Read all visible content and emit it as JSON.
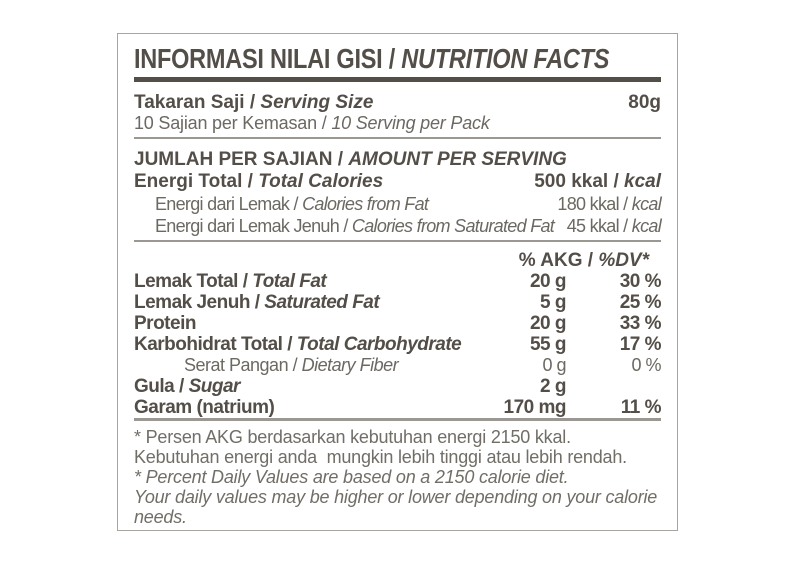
{
  "title": {
    "id": "INFORMASI NILAI GISI / ",
    "en": "NUTRITION FACTS"
  },
  "serving": {
    "size_label_id": "Takaran Saji / ",
    "size_label_en": "Serving Size",
    "size_value": "80g",
    "per_pack_id": "10 Sajian per Kemasan / ",
    "per_pack_en": "10 Serving per Pack"
  },
  "amount_per_serving": {
    "heading_id": "JUMLAH PER SAJIAN / ",
    "heading_en": "AMOUNT PER SERVING",
    "rows": [
      {
        "label_id": "Energi Total / ",
        "label_en": "Total Calories",
        "value_id": "500 kkal / ",
        "value_en": "kcal"
      },
      {
        "label_id": "Energi dari Lemak / ",
        "label_en": "Calories from Fat",
        "value_id": "180 kkal / ",
        "value_en": "kcal"
      },
      {
        "label_id": "Energi dari Lemak Jenuh / ",
        "label_en": "Calories from Saturated Fat",
        "value_id": "45 kkal / ",
        "value_en": "kcal"
      }
    ]
  },
  "nutrients": {
    "header_id": "% AKG / ",
    "header_en": "%DV*",
    "rows": [
      {
        "label_id": "Lemak Total / ",
        "label_en": "Total Fat",
        "amount": "20 g",
        "dv": "30 %"
      },
      {
        "label_id": "Lemak Jenuh / ",
        "label_en": "Saturated Fat",
        "amount": "5 g",
        "dv": "25 %"
      },
      {
        "label_id": "Protein",
        "label_en": "",
        "amount": "20 g",
        "dv": "33 %"
      },
      {
        "label_id": "Karbohidrat Total / ",
        "label_en": "Total Carbohydrate",
        "amount": "55 g",
        "dv": "17 %"
      },
      {
        "label_id": "Serat Pangan / ",
        "label_en": "Dietary Fiber",
        "amount": "0 g",
        "dv": "0 %"
      },
      {
        "label_id": "Gula / ",
        "label_en": "Sugar",
        "amount": "2 g",
        "dv": ""
      },
      {
        "label_id": "Garam (natrium)",
        "label_en": "",
        "amount": "170 mg",
        "dv": "11 %"
      }
    ]
  },
  "footnotes": {
    "id_line1": "* Persen AKG berdasarkan kebutuhan energi 2150 kkal.",
    "id_line2": "Kebutuhan energi anda  mungkin lebih tinggi atau lebih rendah.",
    "en_line1": "* Percent Daily Values are based on a 2150 calorie diet.",
    "en_line2": "Your daily values may be higher or lower depending on your calorie needs."
  },
  "colors": {
    "ink": "#534e48",
    "body": "#6c6862",
    "foot": "#716d67",
    "rule": "#9b9893",
    "border": "#a8a5a0",
    "bg": "#ffffff"
  }
}
